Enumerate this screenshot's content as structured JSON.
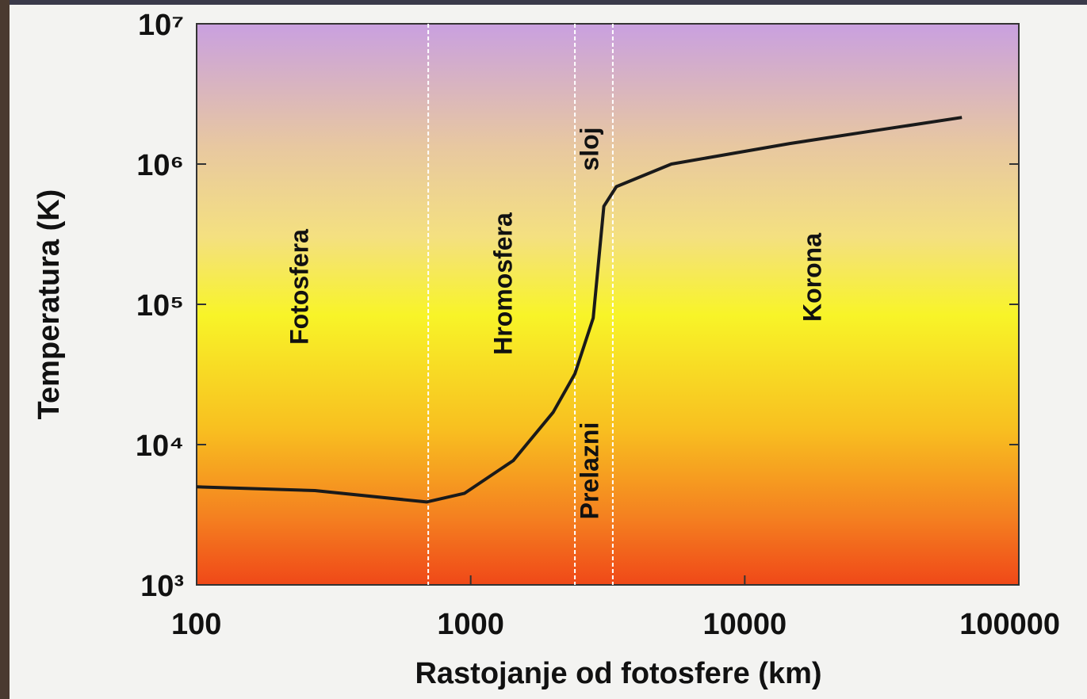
{
  "chart_data": {
    "type": "line",
    "x_label": "Rastojanje od fotosfere  (km)",
    "y_label": "Temperatura (K)",
    "x": [
      100,
      270,
      690,
      950,
      1430,
      2000,
      2400,
      2800,
      3060,
      3400,
      5400,
      14600,
      28000,
      62000
    ],
    "values": [
      5000,
      4700,
      3900,
      4500,
      7700,
      17000,
      32000,
      80000,
      500000,
      690000,
      1000000,
      1400000,
      1700000,
      2150000
    ],
    "color": "#1a1a1a",
    "log_x": true,
    "log_y": true,
    "xlim": [
      100,
      100000
    ],
    "xticks": [
      100,
      1000,
      10000,
      100000
    ],
    "ylim": [
      1000,
      10000000
    ],
    "yticks": [
      {
        "value": 1000,
        "label": "10³"
      },
      {
        "value": 10000,
        "label": "10⁴"
      },
      {
        "value": 100000,
        "label": "10⁵"
      },
      {
        "value": 1000000,
        "label": "10⁶"
      },
      {
        "value": 10000000,
        "label": "10⁷"
      }
    ],
    "region_boundaries": [
      700,
      2400,
      3300
    ],
    "annotations": [
      "Fotosfera",
      "Hromosfera",
      "Prelazni",
      "sloj",
      "Korona"
    ],
    "grid": false
  }
}
